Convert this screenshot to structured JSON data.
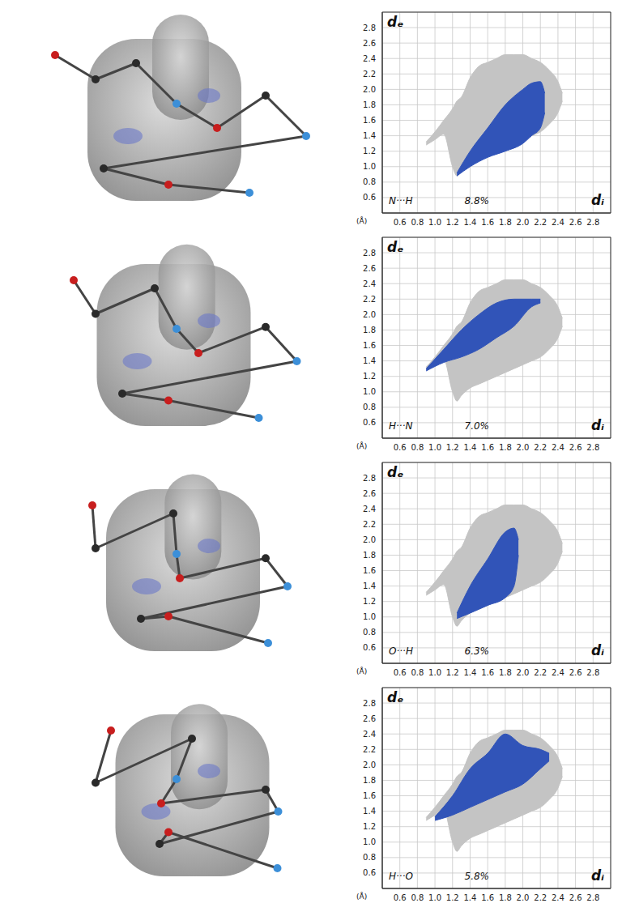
{
  "chart_data": [
    {
      "type": "area",
      "title": "N···H",
      "annotation": {
        "value": 8.8,
        "label": "8.8%"
      },
      "x_label": "dᵢ",
      "y_label": "dₑ",
      "unit_label": "(Å)",
      "xlim": [
        0.4,
        3.0
      ],
      "ylim": [
        0.4,
        3.0
      ],
      "xticks": [
        0.6,
        0.8,
        {
          "value": 1,
          "label": "1.0"
        },
        1.2,
        1.4,
        1.6,
        1.8,
        {
          "value": 2,
          "label": "2.0"
        },
        2.2,
        2.4,
        2.6,
        2.8
      ],
      "yticks": [
        0.6,
        0.8,
        {
          "value": 1,
          "label": "1.0"
        },
        1.2,
        1.4,
        1.6,
        1.8,
        {
          "value": 2,
          "label": "2.0"
        },
        2.2,
        2.4,
        2.6,
        2.8
      ],
      "grid": true,
      "tick_labels": true,
      "series": [
        {
          "color": "#c4c4c4",
          "x": [
            0.9,
            1.0,
            1.1,
            1.2,
            1.25,
            1.3,
            1.4,
            1.5,
            1.6,
            1.7,
            1.8,
            1.9,
            2.0,
            2.1,
            2.2,
            2.3,
            2.4,
            2.45
          ],
          "low": [
            1.28,
            1.35,
            1.42,
            1.0,
            0.88,
            0.95,
            1.05,
            1.1,
            1.15,
            1.2,
            1.25,
            1.3,
            1.35,
            1.4,
            1.45,
            1.55,
            1.7,
            1.85
          ],
          "high": [
            1.32,
            1.45,
            1.6,
            1.75,
            1.85,
            1.9,
            2.15,
            2.3,
            2.35,
            2.4,
            2.45,
            2.45,
            2.45,
            2.4,
            2.35,
            2.25,
            2.1,
            1.95
          ]
        },
        {
          "color": "#3154b8",
          "x": [
            1.25,
            1.4,
            1.6,
            1.8,
            2.0,
            2.1,
            2.2,
            2.25
          ],
          "low": [
            0.88,
            1.0,
            1.12,
            1.2,
            1.3,
            1.4,
            1.5,
            1.7
          ],
          "high": [
            0.92,
            1.2,
            1.5,
            1.8,
            2.0,
            2.08,
            2.1,
            1.95
          ]
        }
      ]
    },
    {
      "type": "area",
      "title": "H···N",
      "annotation": {
        "value": 7.0,
        "label": "7.0%"
      },
      "x_label": "dᵢ",
      "y_label": "dₑ",
      "unit_label": "(Å)",
      "xlim": [
        0.4,
        3.0
      ],
      "ylim": [
        0.4,
        3.0
      ],
      "xticks": [
        0.6,
        0.8,
        {
          "value": 1,
          "label": "1.0"
        },
        1.2,
        1.4,
        1.6,
        1.8,
        {
          "value": 2,
          "label": "2.0"
        },
        2.2,
        2.4,
        2.6,
        2.8
      ],
      "yticks": [
        0.6,
        0.8,
        {
          "value": 1,
          "label": "1.0"
        },
        1.2,
        1.4,
        1.6,
        1.8,
        {
          "value": 2,
          "label": "2.0"
        },
        2.2,
        2.4,
        2.6,
        2.8
      ],
      "grid": true,
      "tick_labels": true,
      "series": [
        {
          "color": "#c4c4c4",
          "x": [
            0.9,
            1.0,
            1.1,
            1.2,
            1.25,
            1.3,
            1.4,
            1.5,
            1.6,
            1.7,
            1.8,
            1.9,
            2.0,
            2.1,
            2.2,
            2.3,
            2.4,
            2.45
          ],
          "low": [
            1.28,
            1.35,
            1.42,
            1.0,
            0.88,
            0.95,
            1.05,
            1.1,
            1.15,
            1.2,
            1.25,
            1.3,
            1.35,
            1.4,
            1.45,
            1.55,
            1.7,
            1.85
          ],
          "high": [
            1.32,
            1.45,
            1.6,
            1.75,
            1.85,
            1.9,
            2.15,
            2.3,
            2.35,
            2.4,
            2.45,
            2.45,
            2.45,
            2.4,
            2.35,
            2.25,
            2.1,
            1.95
          ]
        },
        {
          "color": "#3154b8",
          "x": [
            0.9,
            1.1,
            1.3,
            1.5,
            1.7,
            1.9,
            2.1,
            2.2
          ],
          "low": [
            1.27,
            1.38,
            1.45,
            1.55,
            1.7,
            1.85,
            2.1,
            2.15
          ],
          "high": [
            1.3,
            1.55,
            1.8,
            2.0,
            2.15,
            2.2,
            2.2,
            2.2
          ]
        }
      ]
    },
    {
      "type": "area",
      "title": "O···H",
      "annotation": {
        "value": 6.3,
        "label": "6.3%"
      },
      "x_label": "dᵢ",
      "y_label": "dₑ",
      "unit_label": "(Å)",
      "xlim": [
        0.4,
        3.0
      ],
      "ylim": [
        0.4,
        3.0
      ],
      "xticks": [
        0.6,
        0.8,
        {
          "value": 1,
          "label": "1.0"
        },
        1.2,
        1.4,
        1.6,
        1.8,
        {
          "value": 2,
          "label": "2.0"
        },
        2.2,
        2.4,
        2.6,
        2.8
      ],
      "yticks": [
        0.6,
        0.8,
        {
          "value": 1,
          "label": "1.0"
        },
        1.2,
        1.4,
        1.6,
        1.8,
        {
          "value": 2,
          "label": "2.0"
        },
        2.2,
        2.4,
        2.6,
        2.8
      ],
      "grid": true,
      "tick_labels": true,
      "series": [
        {
          "color": "#c4c4c4",
          "x": [
            0.9,
            1.0,
            1.1,
            1.2,
            1.25,
            1.3,
            1.4,
            1.5,
            1.6,
            1.7,
            1.8,
            1.9,
            2.0,
            2.1,
            2.2,
            2.3,
            2.4,
            2.45
          ],
          "low": [
            1.28,
            1.35,
            1.42,
            1.0,
            0.88,
            0.95,
            1.05,
            1.1,
            1.15,
            1.2,
            1.25,
            1.3,
            1.35,
            1.4,
            1.45,
            1.55,
            1.7,
            1.85
          ],
          "high": [
            1.32,
            1.45,
            1.6,
            1.75,
            1.85,
            1.9,
            2.15,
            2.3,
            2.35,
            2.4,
            2.45,
            2.45,
            2.45,
            2.4,
            2.35,
            2.25,
            2.1,
            1.95
          ]
        },
        {
          "color": "#3154b8",
          "x": [
            1.25,
            1.4,
            1.6,
            1.8,
            1.9,
            1.95
          ],
          "low": [
            0.98,
            1.05,
            1.15,
            1.25,
            1.4,
            1.8
          ],
          "high": [
            1.05,
            1.4,
            1.75,
            2.1,
            2.15,
            2.0
          ]
        }
      ]
    },
    {
      "type": "area",
      "title": "H···O",
      "annotation": {
        "value": 5.8,
        "label": "5.8%"
      },
      "x_label": "dᵢ",
      "y_label": "dₑ",
      "unit_label": "(Å)",
      "xlim": [
        0.4,
        3.0
      ],
      "ylim": [
        0.4,
        3.0
      ],
      "xticks": [
        0.6,
        0.8,
        {
          "value": 1,
          "label": "1.0"
        },
        1.2,
        1.4,
        1.6,
        1.8,
        {
          "value": 2,
          "label": "2.0"
        },
        2.2,
        2.4,
        2.6,
        2.8
      ],
      "yticks": [
        0.6,
        0.8,
        {
          "value": 1,
          "label": "1.0"
        },
        1.2,
        1.4,
        1.6,
        1.8,
        {
          "value": 2,
          "label": "2.0"
        },
        2.2,
        2.4,
        2.6,
        2.8
      ],
      "grid": true,
      "tick_labels": true,
      "series": [
        {
          "color": "#c4c4c4",
          "x": [
            0.9,
            1.0,
            1.1,
            1.2,
            1.25,
            1.3,
            1.4,
            1.5,
            1.6,
            1.7,
            1.8,
            1.9,
            2.0,
            2.1,
            2.2,
            2.3,
            2.4,
            2.45
          ],
          "low": [
            1.28,
            1.35,
            1.42,
            1.0,
            0.88,
            0.95,
            1.05,
            1.1,
            1.15,
            1.2,
            1.25,
            1.3,
            1.35,
            1.4,
            1.45,
            1.55,
            1.7,
            1.85
          ],
          "high": [
            1.32,
            1.45,
            1.6,
            1.75,
            1.85,
            1.9,
            2.15,
            2.3,
            2.35,
            2.4,
            2.45,
            2.45,
            2.45,
            2.4,
            2.35,
            2.25,
            2.1,
            1.95
          ]
        },
        {
          "color": "#3154b8",
          "x": [
            1.0,
            1.2,
            1.4,
            1.6,
            1.8,
            2.0,
            2.2,
            2.3
          ],
          "low": [
            1.28,
            1.35,
            1.45,
            1.55,
            1.65,
            1.75,
            1.95,
            2.05
          ],
          "high": [
            1.33,
            1.6,
            1.95,
            2.15,
            2.4,
            2.25,
            2.2,
            2.15
          ]
        }
      ]
    }
  ]
}
